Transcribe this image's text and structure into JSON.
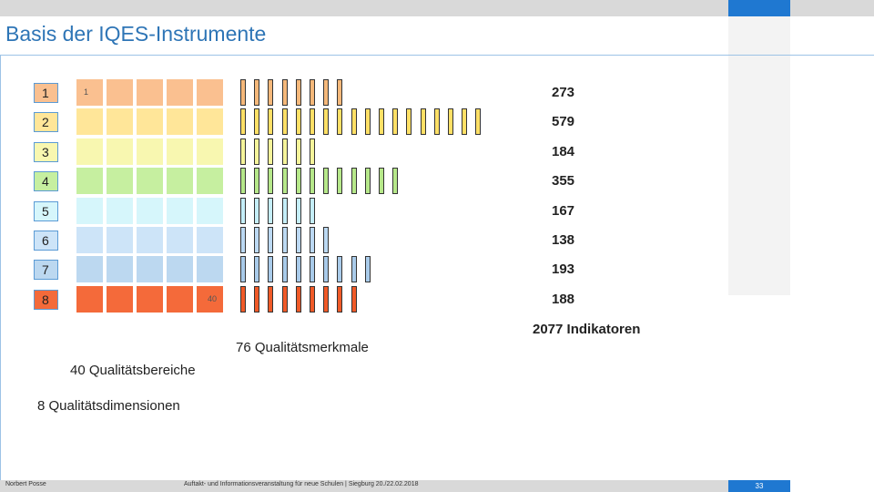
{
  "slide": {
    "title": "Basis der IQES-Instrumente",
    "first_area_label": "1",
    "last_area_label": "40",
    "captions": {
      "indicators": "2077 Indikatoren",
      "features": "76 Qualitätsmerkmale",
      "areas": "40 Qualitätsbereiche",
      "dimensions": "8 Qualitätsdimensionen"
    }
  },
  "dimensions": [
    {
      "label": "1",
      "areas": 5,
      "features": 8,
      "indicators": "273",
      "color": "#fac090",
      "bar_color": "#f5b87a"
    },
    {
      "label": "2",
      "areas": 5,
      "features": 18,
      "indicators": "579",
      "color": "#ffe699",
      "bar_color": "#ffe066"
    },
    {
      "label": "3",
      "areas": 5,
      "features": 6,
      "indicators": "184",
      "color": "#f8f7b0",
      "bar_color": "#f5f49a"
    },
    {
      "label": "4",
      "areas": 5,
      "features": 12,
      "indicators": "355",
      "color": "#c6efa0",
      "bar_color": "#b6e88a"
    },
    {
      "label": "5",
      "areas": 5,
      "features": 6,
      "indicators": "167",
      "color": "#d6f6fb",
      "bar_color": "#c5eef8"
    },
    {
      "label": "6",
      "areas": 5,
      "features": 7,
      "indicators": "138",
      "color": "#cde4f8",
      "bar_color": "#bcd9f3"
    },
    {
      "label": "7",
      "areas": 5,
      "features": 10,
      "indicators": "193",
      "color": "#bcd8f0",
      "bar_color": "#a9cbea"
    },
    {
      "label": "8",
      "areas": 5,
      "features": 9,
      "indicators": "188",
      "color": "#f46a3a",
      "bar_color": "#f05a28"
    }
  ],
  "footer": {
    "author": "Norbert Posse",
    "event": "Auftakt- und Informationsveranstaltung für neue Schulen | Siegburg 20./22.02.2018",
    "page": "33"
  }
}
